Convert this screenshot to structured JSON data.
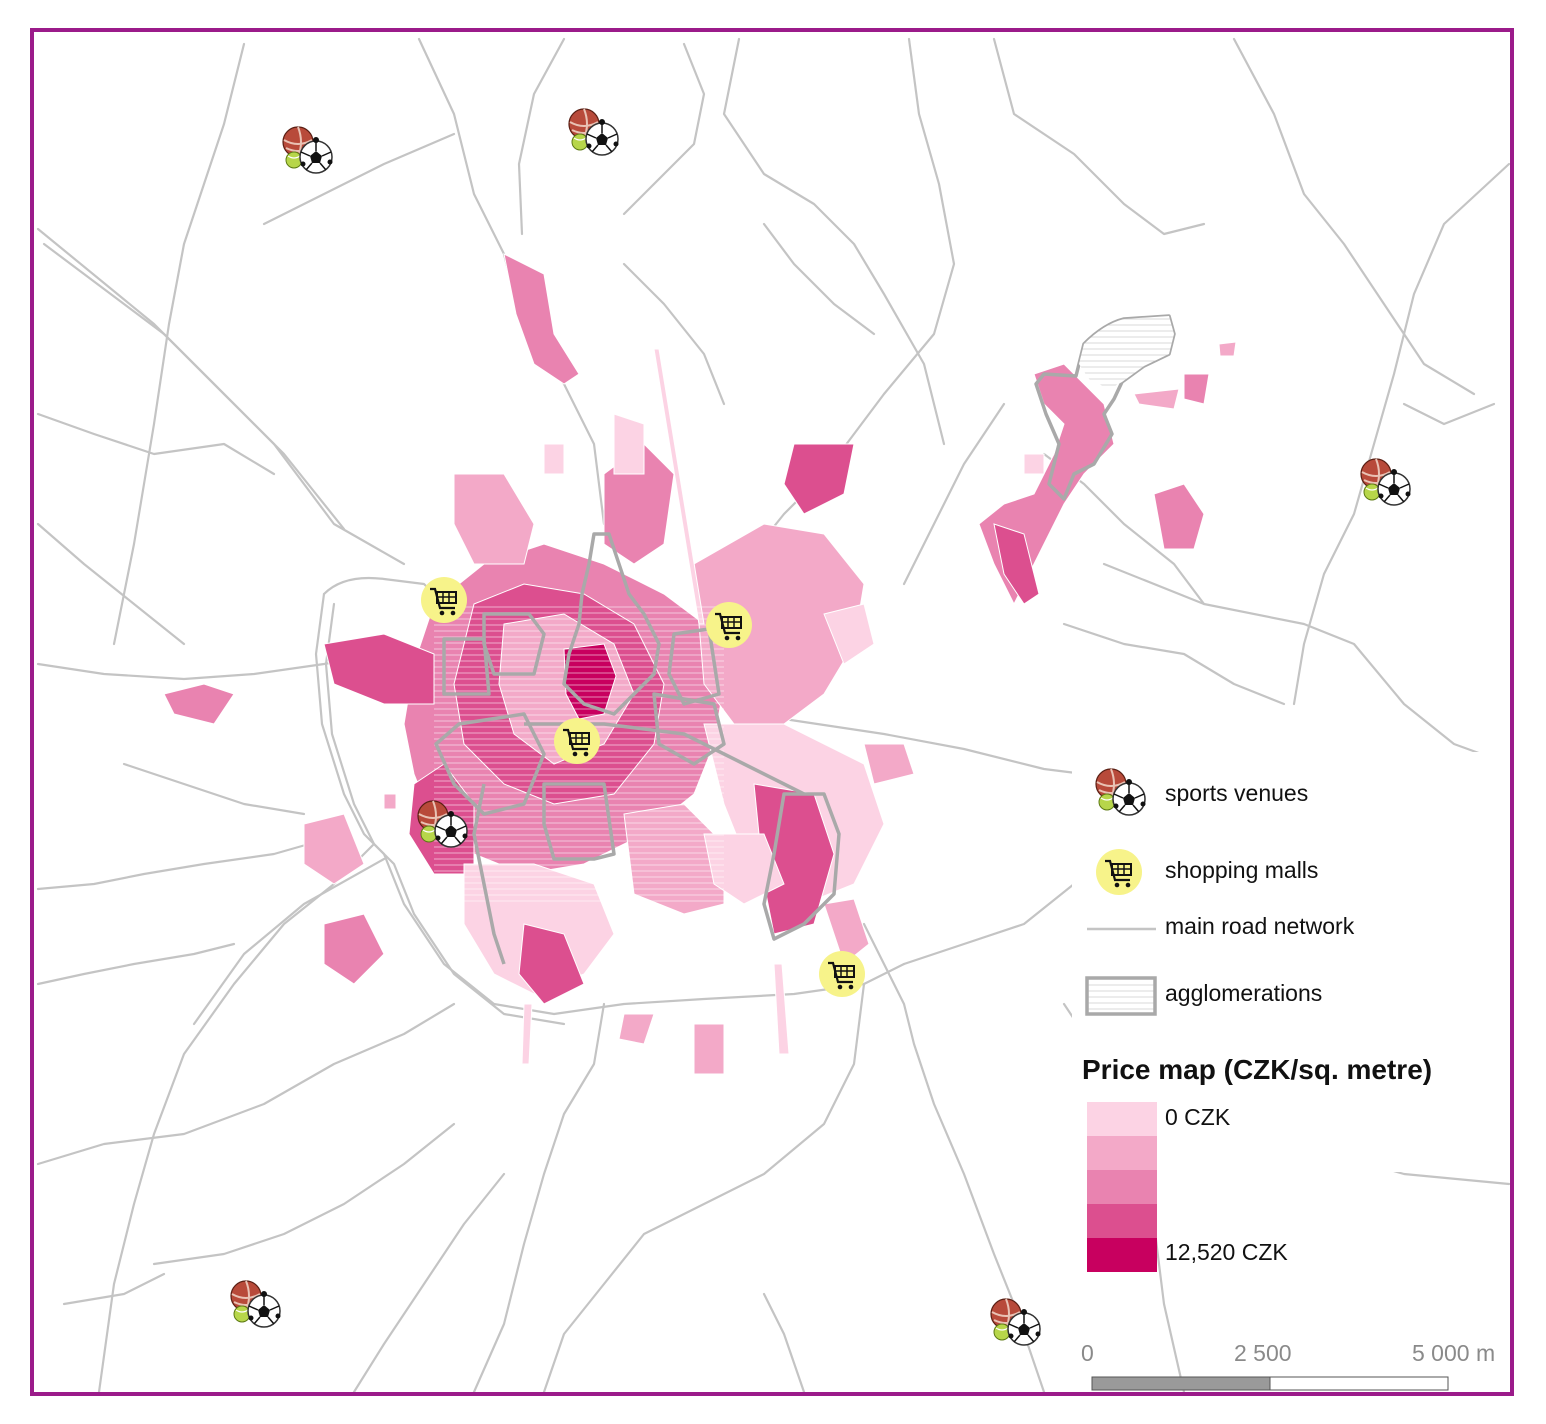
{
  "legend": {
    "sports_label": "sports venues",
    "malls_label": "shopping malls",
    "roads_label": "main road network",
    "agglomerations_label": "agglomerations",
    "price_title": "Price map (CZK/sq. metre)",
    "price_min_label": "0 CZK",
    "price_max_label": "12,520 CZK",
    "price_classes": [
      "#fcd3e4",
      "#f3a9c8",
      "#e983b0",
      "#dc4f8f",
      "#c8005f"
    ]
  },
  "scale_bar": {
    "tick_0": "0",
    "tick_mid": "2 500",
    "tick_end": "5 000 m"
  },
  "colors": {
    "frame": "#9b1b8a",
    "roads": "#c4c4c4",
    "agglomeration_outline": "#a9a9a9",
    "mall_marker": "#f7f38a"
  },
  "icons": {
    "sports_venue": "sports-venue-icon",
    "shopping_mall": "shopping-cart-icon"
  }
}
